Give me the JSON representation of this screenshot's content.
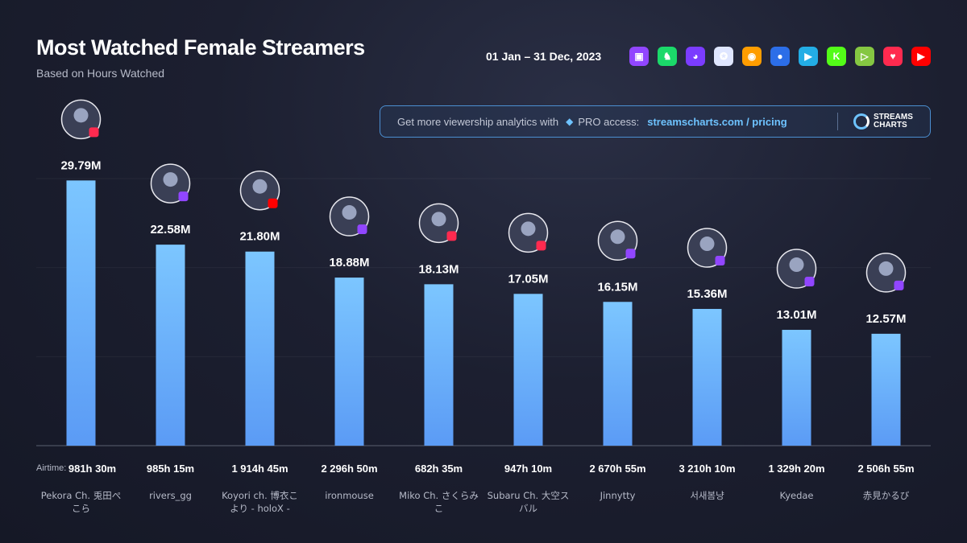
{
  "header": {
    "title": "Most Watched Female Streamers",
    "subtitle": "Based on Hours Watched",
    "date_range": "01 Jan – 31 Dec, 2023"
  },
  "platforms": [
    {
      "icon": "twitch-icon",
      "color": "#9146ff",
      "glyph": "▣"
    },
    {
      "icon": "trovo-icon",
      "color": "#1bd96a",
      "glyph": "♞"
    },
    {
      "icon": "nimo-icon",
      "color": "#7b3cff",
      "glyph": "◕"
    },
    {
      "icon": "afreecatv-icon",
      "color": "#dfe6ff",
      "glyph": "✪"
    },
    {
      "icon": "huya-icon",
      "color": "#ff9d00",
      "glyph": "◉"
    },
    {
      "icon": "douyu-icon",
      "color": "#2c6ee8",
      "glyph": "●"
    },
    {
      "icon": "bilibili-icon",
      "color": "#23ade5",
      "glyph": "▶"
    },
    {
      "icon": "kick-icon",
      "color": "#53fc18",
      "glyph": "K"
    },
    {
      "icon": "rumble-icon",
      "color": "#85c742",
      "glyph": "▷"
    },
    {
      "icon": "heart-icon",
      "color": "#ff2a4f",
      "glyph": "♥"
    },
    {
      "icon": "youtube-icon",
      "color": "#ff0000",
      "glyph": "▶"
    }
  ],
  "promo": {
    "text": "Get more viewership analytics with",
    "pro": "PRO access:",
    "link": "streamscharts.com / pricing",
    "logo_line1": "STREAMS",
    "logo_line2": "CHARTS"
  },
  "airtime_label": "Airtime:",
  "colors": {
    "bar_top": "#7cc6ff",
    "bar_bottom": "#5b9bf5",
    "accent": "#6ec3ff"
  },
  "chart_data": {
    "type": "bar",
    "title": "Most Watched Female Streamers",
    "categories": [
      "Pekora Ch. 兎田ぺこら",
      "rivers_gg",
      "Koyori ch. 博衣こより - holoX -",
      "ironmouse",
      "Miko Ch. さくらみこ",
      "Subaru Ch. 大空スバル",
      "Jinnytty",
      "서새봄냥",
      "Kyedae",
      "赤見かるび"
    ],
    "name_lines": [
      [
        "Pekora Ch. 兎田ぺ",
        "こら"
      ],
      [
        "rivers_gg"
      ],
      [
        "Koyori ch. 博衣こ",
        "より - holoX -"
      ],
      [
        "ironmouse"
      ],
      [
        "Miko Ch. さくらみ",
        "こ"
      ],
      [
        "Subaru Ch. 大空ス",
        "バル"
      ],
      [
        "Jinnytty"
      ],
      [
        "서새봄냥"
      ],
      [
        "Kyedae"
      ],
      [
        "赤見かるび"
      ]
    ],
    "values": [
      29.79,
      22.58,
      21.8,
      18.88,
      18.13,
      17.05,
      16.15,
      15.36,
      13.01,
      12.57
    ],
    "value_labels": [
      "29.79M",
      "22.58M",
      "21.80M",
      "18.88M",
      "18.13M",
      "17.05M",
      "16.15M",
      "15.36M",
      "13.01M",
      "12.57M"
    ],
    "airtime": [
      "981h 30m",
      "985h 15m",
      "1 914h 45m",
      "2 296h 50m",
      "682h 35m",
      "947h 10m",
      "2 670h 55m",
      "3 210h 10m",
      "1 329h 20m",
      "2 506h 55m"
    ],
    "platform_badges": [
      "heart-icon",
      "twitch-icon",
      "youtube-icon",
      "twitch-icon",
      "heart-icon",
      "heart-icon",
      "twitch-icon",
      "twitch-icon",
      "twitch-icon",
      "twitch-icon"
    ],
    "ylim": [
      0,
      30
    ],
    "unit": "M"
  }
}
